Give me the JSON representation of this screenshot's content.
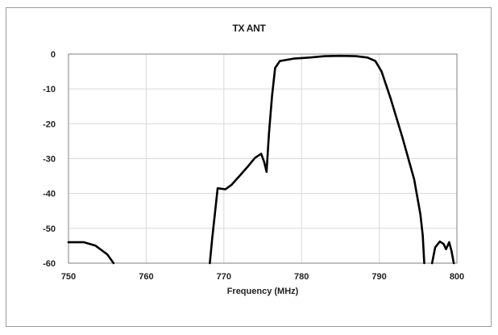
{
  "chart_data": {
    "type": "line",
    "title": "TX ANT",
    "xlabel": "Frequency (MHz)",
    "ylabel": "",
    "xlim": [
      750,
      800
    ],
    "ylim": [
      -60,
      0
    ],
    "x_ticks": [
      750,
      760,
      770,
      780,
      790,
      800
    ],
    "y_ticks": [
      0,
      -10,
      -20,
      -30,
      -40,
      -50,
      -60
    ],
    "grid": true,
    "legend": "none",
    "line_color": "#000000",
    "grid_color": "#d9d9d9",
    "series": [
      {
        "segments": [
          [
            [
              750,
              -54
            ],
            [
              752,
              -54
            ],
            [
              753.5,
              -55
            ],
            [
              755,
              -57.5
            ],
            [
              755.8,
              -60
            ]
          ],
          [
            [
              768.2,
              -60
            ],
            [
              768.5,
              -53
            ],
            [
              769.2,
              -38.5
            ],
            [
              770.2,
              -38.8
            ],
            [
              771,
              -37.5
            ],
            [
              772,
              -35
            ],
            [
              773,
              -32.5
            ],
            [
              774,
              -29.8
            ],
            [
              774.8,
              -28.6
            ],
            [
              775.2,
              -31
            ],
            [
              775.5,
              -33.8
            ],
            [
              775.8,
              -23
            ],
            [
              776.2,
              -12
            ],
            [
              776.6,
              -4
            ],
            [
              777.2,
              -2
            ],
            [
              779,
              -1.3
            ],
            [
              781,
              -1
            ],
            [
              783,
              -0.6
            ],
            [
              785,
              -0.5
            ],
            [
              787,
              -0.6
            ],
            [
              788.5,
              -1
            ],
            [
              789.5,
              -2
            ],
            [
              790.3,
              -5
            ],
            [
              791.5,
              -13
            ],
            [
              793,
              -24
            ],
            [
              794.5,
              -36
            ],
            [
              795.3,
              -46
            ],
            [
              795.6,
              -52
            ],
            [
              795.8,
              -60
            ]
          ],
          [
            [
              796.8,
              -60
            ],
            [
              797.2,
              -55.5
            ],
            [
              797.8,
              -53.8
            ],
            [
              798.3,
              -54.5
            ],
            [
              798.6,
              -56
            ],
            [
              799,
              -54
            ],
            [
              799.3,
              -56.5
            ],
            [
              799.6,
              -60
            ]
          ]
        ]
      }
    ]
  }
}
